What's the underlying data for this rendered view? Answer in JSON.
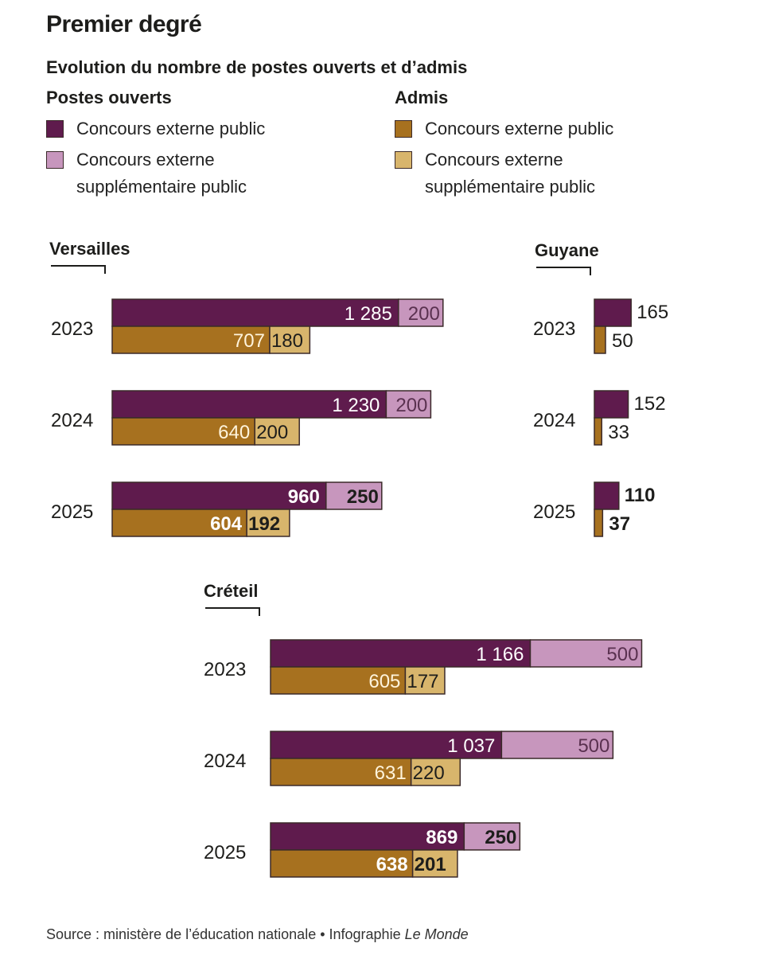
{
  "title": "Premier degré",
  "subtitle": "Evolution du nombre de postes ouverts et d’admis",
  "legend": {
    "postes_heading": "Postes ouverts",
    "admis_heading": "Admis",
    "postes_items": [
      "Concours externe public",
      "Concours externe",
      "supplémentaire public"
    ],
    "admis_items": [
      "Concours externe public",
      "Concours externe",
      "supplémentaire public"
    ]
  },
  "colors": {
    "postes_public": "#5f1b4d",
    "postes_supp": "#c796bd",
    "admis_public": "#a7711f",
    "admis_supp": "#d8b56c",
    "border": "#3b2a2a",
    "ink": "#1d1d1b"
  },
  "source": {
    "text": "Source : ministère de l’éducation nationale • Infographie ",
    "publication": "Le Monde"
  },
  "chart_data": {
    "type": "bar",
    "orientation": "horizontal",
    "stacked": true,
    "series": [
      "Postes ouverts – Concours externe public",
      "Postes ouverts – Concours externe supplémentaire public",
      "Admis – Concours externe public",
      "Admis – Concours externe supplémentaire public"
    ],
    "regions": [
      {
        "name": "Versailles",
        "years": [
          {
            "year": "2023",
            "postes_public": 1285,
            "postes_supp": 200,
            "admis_public": 707,
            "admis_supp": 180,
            "public_label": "1 285",
            "emphasis": false
          },
          {
            "year": "2024",
            "postes_public": 1230,
            "postes_supp": 200,
            "admis_public": 640,
            "admis_supp": 200,
            "public_label": "1 230",
            "emphasis": false
          },
          {
            "year": "2025",
            "postes_public": 960,
            "postes_supp": 250,
            "admis_public": 604,
            "admis_supp": 192,
            "public_label": "960",
            "emphasis": true
          }
        ]
      },
      {
        "name": "Guyane",
        "years": [
          {
            "year": "2023",
            "postes_public": 165,
            "postes_supp": 0,
            "admis_public": 50,
            "admis_supp": 0,
            "public_label": "165",
            "emphasis": false
          },
          {
            "year": "2024",
            "postes_public": 152,
            "postes_supp": 0,
            "admis_public": 33,
            "admis_supp": 0,
            "public_label": "152",
            "emphasis": false
          },
          {
            "year": "2025",
            "postes_public": 110,
            "postes_supp": 0,
            "admis_public": 37,
            "admis_supp": 0,
            "public_label": "110",
            "emphasis": true
          }
        ]
      },
      {
        "name": "Créteil",
        "years": [
          {
            "year": "2023",
            "postes_public": 1166,
            "postes_supp": 500,
            "admis_public": 605,
            "admis_supp": 177,
            "public_label": "1 166",
            "emphasis": false
          },
          {
            "year": "2024",
            "postes_public": 1037,
            "postes_supp": 500,
            "admis_public": 631,
            "admis_supp": 220,
            "public_label": "1 037",
            "emphasis": false
          },
          {
            "year": "2025",
            "postes_public": 869,
            "postes_supp": 250,
            "admis_public": 638,
            "admis_supp": 201,
            "public_label": "869",
            "emphasis": true
          }
        ]
      }
    ]
  }
}
